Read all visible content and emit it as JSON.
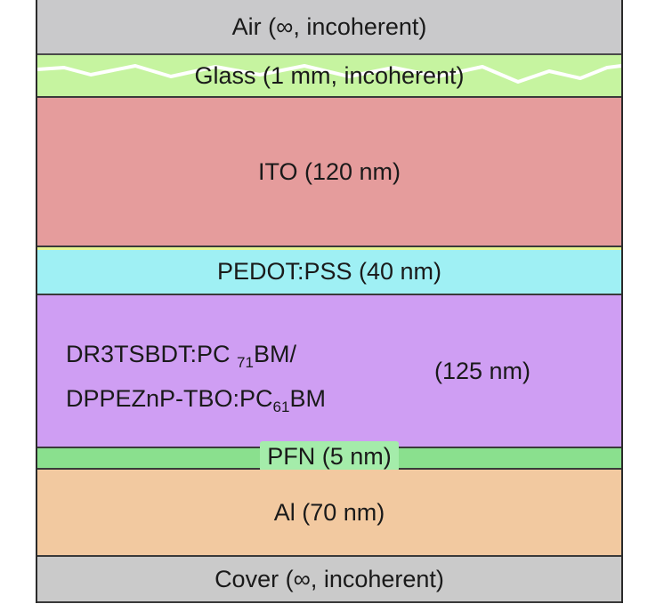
{
  "layers": {
    "air": "Air (∞, incoherent)",
    "glass": "Glass (1 mm, incoherent)",
    "ito": "ITO (120 nm)",
    "pedot": "PEDOT:PSS (40 nm)",
    "active": {
      "line1_prefix": "DR3TSBDT:PC ",
      "line1_sub": "71",
      "line1_suffix": "BM/",
      "line2_prefix": "DPPEZnP-TBO:PC",
      "line2_sub": "61",
      "line2_suffix": "BM",
      "thickness": "(125 nm)"
    },
    "pfn": "PFN (5 nm)",
    "al": "Al (70 nm)",
    "cover": "Cover (∞, incoherent)"
  },
  "colors": {
    "air": "#c9c9cb",
    "glass": "#c6f4a0",
    "ito": "#e59c9c",
    "pedot": "#9ff0f4",
    "active": "#cf9ef3",
    "pfn": "#8ae08e",
    "al": "#f2c9a0",
    "cover": "#cacaca"
  }
}
